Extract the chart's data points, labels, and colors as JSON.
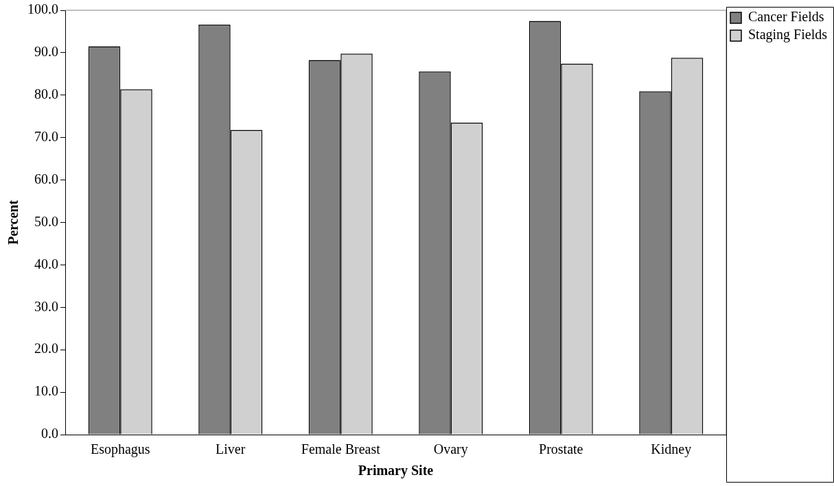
{
  "chart_data": {
    "type": "bar",
    "xlabel": "Primary Site",
    "ylabel": "Percent",
    "categories": [
      "Esophagus",
      "Liver",
      "Female Breast",
      "Ovary",
      "Prostate",
      "Kidney"
    ],
    "series": [
      {
        "name": "Cancer Fields",
        "color": "#808080",
        "values": [
          91.5,
          96.6,
          88.3,
          85.6,
          97.5,
          80.9
        ]
      },
      {
        "name": "Staging Fields",
        "color": "#d0d0d0",
        "values": [
          81.4,
          71.8,
          89.8,
          73.5,
          87.4,
          88.8
        ]
      }
    ],
    "ylim": [
      0,
      100
    ],
    "yticks": [
      {
        "value": 0,
        "label": "0.0"
      },
      {
        "value": 10,
        "label": "10.0"
      },
      {
        "value": 20,
        "label": "20.0"
      },
      {
        "value": 30,
        "label": "30.0"
      },
      {
        "value": 40,
        "label": "40.0"
      },
      {
        "value": 50,
        "label": "50.0"
      },
      {
        "value": 60,
        "label": "60.0"
      },
      {
        "value": 70,
        "label": "70.0"
      },
      {
        "value": 80,
        "label": "80.0"
      },
      {
        "value": 90,
        "label": "90.0"
      },
      {
        "value": 100,
        "label": "100.0"
      }
    ],
    "grid": false,
    "legend": "top right"
  }
}
